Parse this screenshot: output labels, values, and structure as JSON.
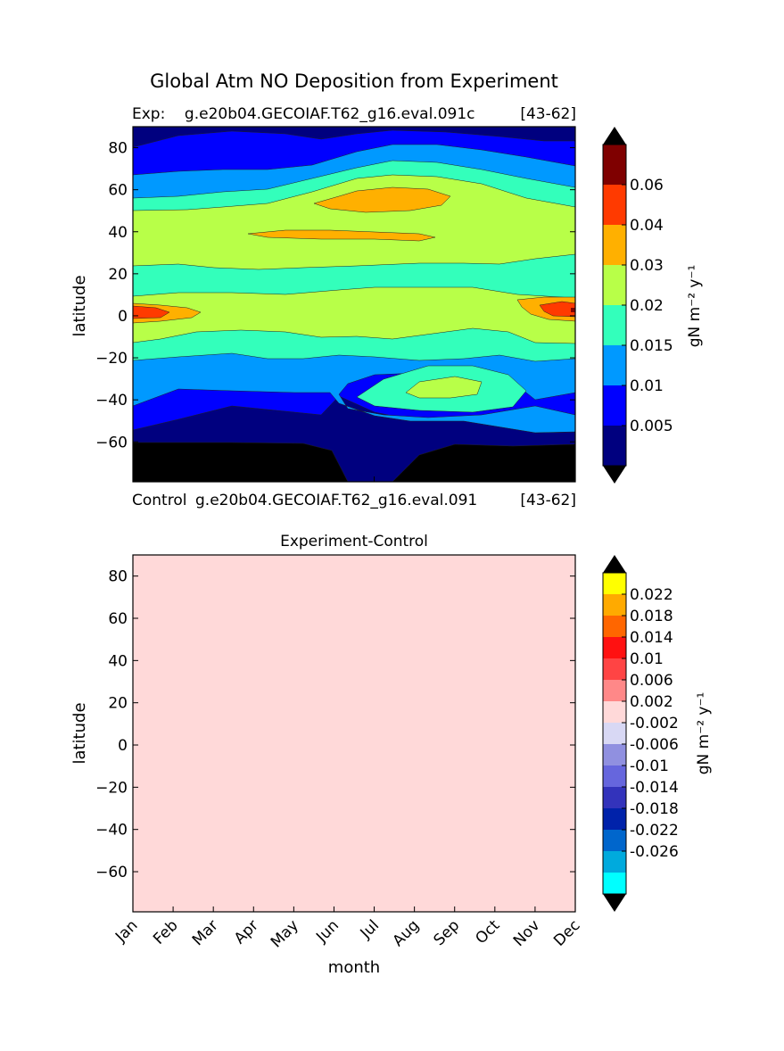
{
  "suptitle": "Global Atm NO Deposition from Experiment",
  "chart_data": [
    {
      "type": "heatmap",
      "subtype": "filled-contour",
      "title_left": "Exp:    g.e20b04.GECOIAF.T62_g16.eval.091c",
      "title_right": "[43-62]",
      "bottom_left_label": "Control",
      "bottom_middle_label": "g.e20b04.GECOIAF.T62_g16.eval.091",
      "bottom_right_label": "[43-62]",
      "ylabel": "latitude",
      "yticks": [
        80,
        60,
        40,
        20,
        0,
        -20,
        -40,
        -60
      ],
      "ylim": [
        -79,
        90
      ],
      "xlim": [
        0,
        11
      ],
      "colorbar": {
        "label": "gN m⁻² y⁻¹",
        "tick_labels": [
          "0.06",
          "0.04",
          "0.03",
          "0.02",
          "0.015",
          "0.01",
          "0.005"
        ],
        "levels": [
          0.001,
          0.005,
          0.01,
          0.015,
          0.02,
          0.03,
          0.04,
          0.06,
          0.08
        ],
        "colors": [
          "#00007f",
          "#0000ff",
          "#0099ff",
          "#33ffbb",
          "#b8ff48",
          "#ffb000",
          "#ff3a00",
          "#7f0000"
        ],
        "under_color": "#000000",
        "over_color": "#000000"
      },
      "latitude_bands": [
        {
          "lat_range": [
            -79,
            -60
          ],
          "level": "below 0.001"
        },
        {
          "lat_range": [
            -60,
            -45
          ],
          "level": "0.001-0.005"
        },
        {
          "lat_range": [
            -45,
            -20
          ],
          "level": "0.005-0.01"
        },
        {
          "lat_range": [
            -20,
            -5
          ],
          "level": "0.015-0.02"
        },
        {
          "lat_range": [
            -5,
            20
          ],
          "level": "0.02-0.03"
        },
        {
          "lat_range": [
            20,
            60
          ],
          "level": "0.02-0.03"
        },
        {
          "lat_range": [
            50,
            60
          ],
          "level": "0.03-0.04",
          "months": "Jun-Sep"
        },
        {
          "lat_range": [
            0,
            5
          ],
          "level": "0.04-0.06",
          "months": "Jan, Dec"
        },
        {
          "lat_range": [
            60,
            80
          ],
          "level": "0.005-0.015"
        },
        {
          "lat_range": [
            80,
            90
          ],
          "level": "below 0.005"
        }
      ]
    },
    {
      "type": "heatmap",
      "subtype": "filled-contour",
      "title": "Experiment-Control",
      "xlabel": "month",
      "ylabel": "latitude",
      "categories": [
        "Jan",
        "Feb",
        "Mar",
        "Apr",
        "May",
        "Jun",
        "Jul",
        "Aug",
        "Sep",
        "Oct",
        "Nov",
        "Dec"
      ],
      "yticks": [
        80,
        60,
        40,
        20,
        0,
        -20,
        -40,
        -60
      ],
      "ylim": [
        -79,
        90
      ],
      "xlim": [
        0,
        11
      ],
      "values": "all 0 (uniform -0.002 to 0.002 band)",
      "fill_color": "#ffd9d9",
      "colorbar": {
        "label": "gN m⁻² y⁻¹",
        "tick_labels": [
          "0.022",
          "0.018",
          "0.014",
          "0.01",
          "0.006",
          "0.002",
          "-0.002",
          "-0.006",
          "-0.01",
          "-0.014",
          "-0.018",
          "-0.022",
          "-0.026"
        ],
        "colors": [
          "#00ffff",
          "#00aadd",
          "#0066cc",
          "#0022aa",
          "#3333bb",
          "#6666dd",
          "#9090e0",
          "#d8d8f4",
          "#ffd9d9",
          "#ff8888",
          "#ff4444",
          "#ff1111",
          "#ff6600",
          "#ffaa00",
          "#ffff00"
        ],
        "under_color": "#000000",
        "over_color": "#000000"
      }
    }
  ]
}
